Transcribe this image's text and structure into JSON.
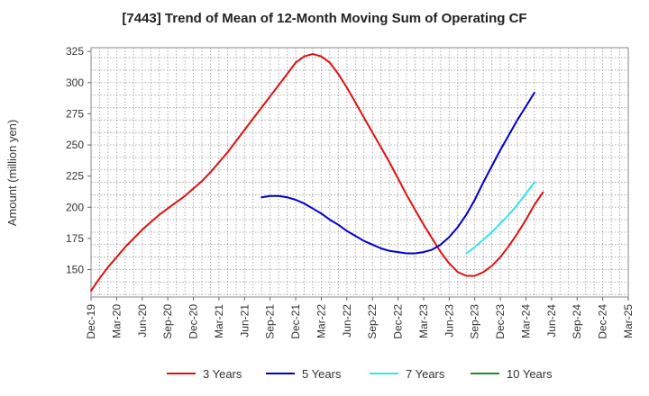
{
  "chart_data": {
    "type": "line",
    "title": "[7443]  Trend of Mean of 12-Month Moving Sum of Operating CF",
    "xlabel": "",
    "ylabel": "Amount (million yen)",
    "ylim": [
      128,
      328
    ],
    "yticks": [
      150,
      175,
      200,
      225,
      250,
      275,
      300,
      325
    ],
    "x_months": [
      "2019-12",
      "2025-03"
    ],
    "xtick_labels": [
      "Dec-19",
      "Mar-20",
      "Jun-20",
      "Sep-20",
      "Dec-20",
      "Mar-21",
      "Jun-21",
      "Sep-21",
      "Dec-21",
      "Mar-22",
      "Jun-22",
      "Sep-22",
      "Dec-22",
      "Mar-23",
      "Jun-23",
      "Sep-23",
      "Dec-23",
      "Mar-24",
      "Jun-24",
      "Sep-24",
      "Dec-24",
      "Mar-25"
    ],
    "grid": true,
    "legend_position": "bottom",
    "series": [
      {
        "name": "3 Years",
        "color": "#dd1111",
        "start": "2019-12",
        "values": [
          133,
          143,
          152,
          160,
          168,
          175,
          182,
          188,
          194,
          199,
          204,
          209,
          215,
          221,
          228,
          236,
          244,
          253,
          262,
          271,
          280,
          289,
          298,
          307,
          316,
          321,
          323,
          321,
          316,
          307,
          296,
          284,
          272,
          260,
          248,
          236,
          223,
          210,
          198,
          186,
          175,
          164,
          155,
          148,
          145,
          145,
          148,
          153,
          160,
          169,
          179,
          190,
          202,
          212
        ]
      },
      {
        "name": "5 Years",
        "color": "#0000cc",
        "start": "2021-08",
        "values": [
          208,
          209,
          209,
          208,
          206,
          203,
          199,
          195,
          190,
          186,
          181,
          177,
          173,
          170,
          167,
          165,
          164,
          163,
          163,
          164,
          166,
          170,
          176,
          184,
          194,
          206,
          220,
          233,
          246,
          258,
          270,
          281,
          292
        ]
      },
      {
        "name": "7 Years",
        "color": "#33e6ee",
        "start": "2023-08",
        "values": [
          163,
          168,
          174,
          180,
          187,
          194,
          202,
          211,
          220
        ]
      },
      {
        "name": "10 Years",
        "color": "#228822",
        "start": "2023-08",
        "values": []
      }
    ]
  }
}
